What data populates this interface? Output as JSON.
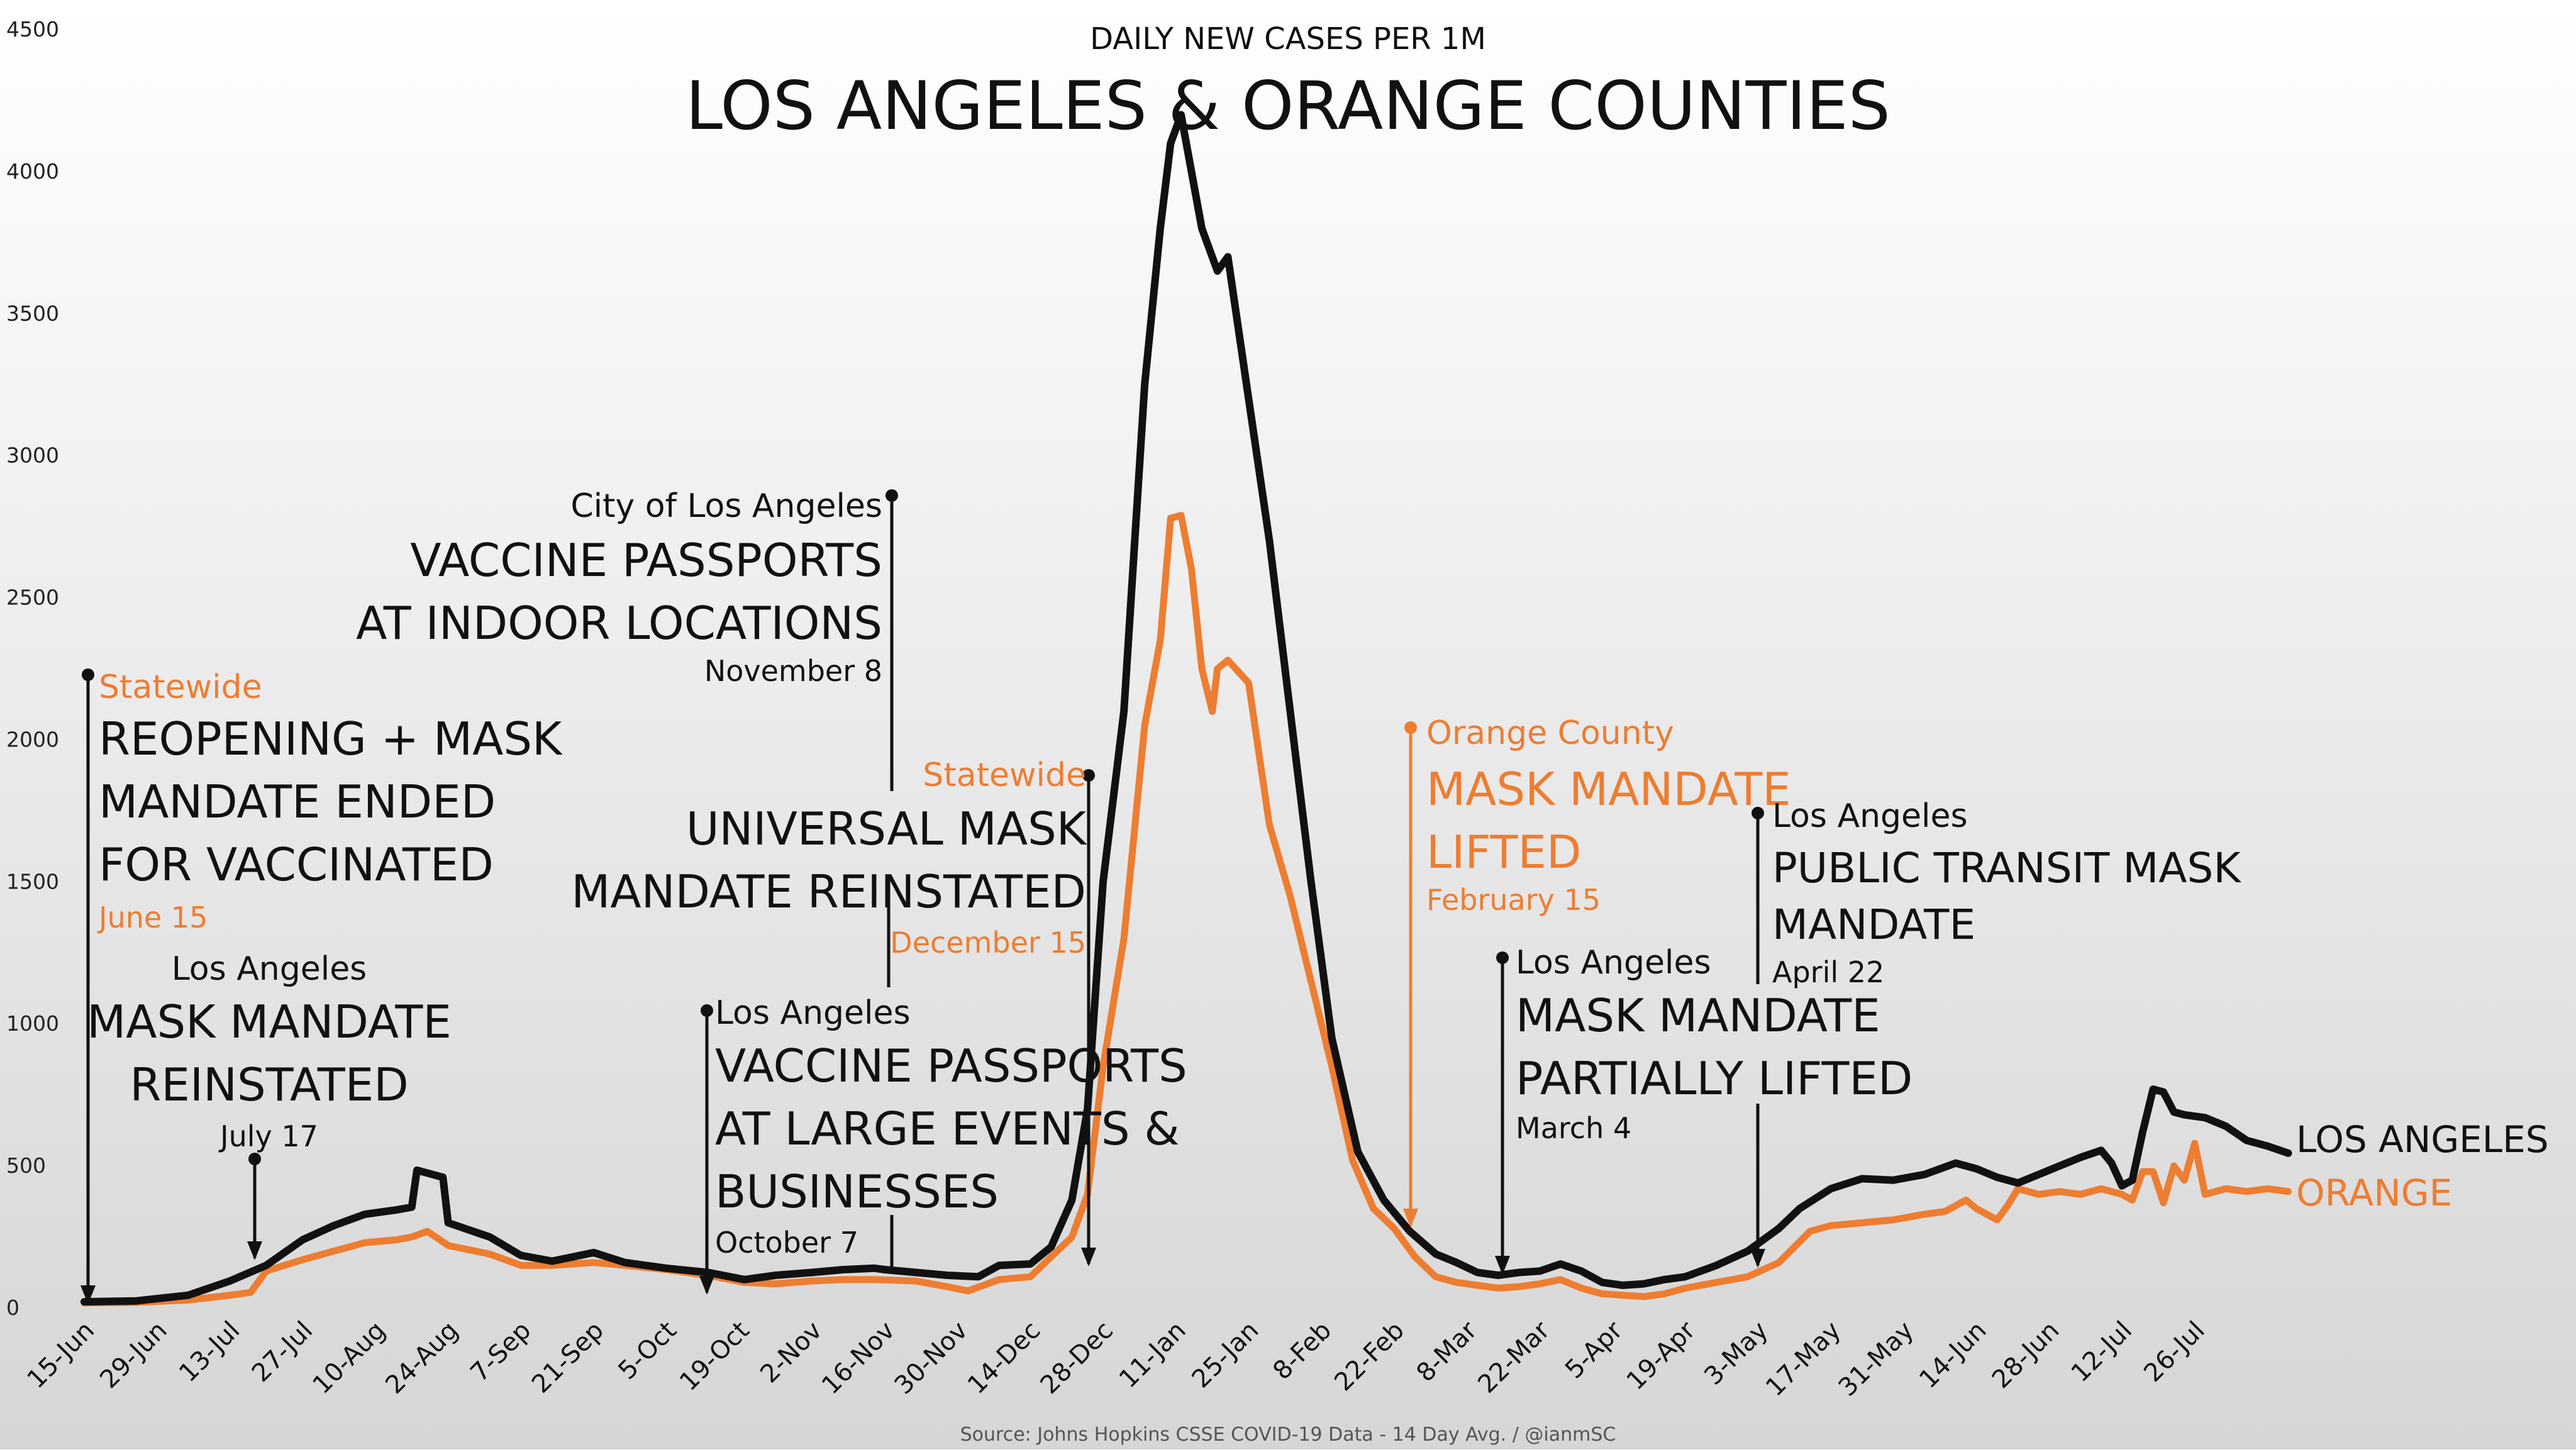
{
  "chart_data": {
    "type": "line",
    "title": "LOS ANGELES & ORANGE COUNTIES",
    "subtitle": "DAILY NEW CASES PER 1M",
    "source": "Source: Johns Hopkins CSSE COVID-19 Data - 14 Day Avg. / @ianmSC",
    "xlabel": "",
    "ylabel": "",
    "ylim": [
      0,
      4500
    ],
    "xlim": [
      0,
      426
    ],
    "grid": false,
    "background": "light-gray-gradient",
    "yticks": [
      "0",
      "500",
      "1000",
      "1500",
      "2000",
      "2500",
      "3000",
      "3500",
      "4000",
      "4500"
    ],
    "x_ticks": [
      {
        "label": "15-Jun",
        "day": 0
      },
      {
        "label": "29-Jun",
        "day": 14
      },
      {
        "label": "13-Jul",
        "day": 28
      },
      {
        "label": "27-Jul",
        "day": 42
      },
      {
        "label": "10-Aug",
        "day": 56
      },
      {
        "label": "24-Aug",
        "day": 70
      },
      {
        "label": "7-Sep",
        "day": 84
      },
      {
        "label": "21-Sep",
        "day": 98
      },
      {
        "label": "5-Oct",
        "day": 112
      },
      {
        "label": "19-Oct",
        "day": 126
      },
      {
        "label": "2-Nov",
        "day": 140
      },
      {
        "label": "16-Nov",
        "day": 154
      },
      {
        "label": "30-Nov",
        "day": 168
      },
      {
        "label": "14-Dec",
        "day": 182
      },
      {
        "label": "28-Dec",
        "day": 196
      },
      {
        "label": "11-Jan",
        "day": 210
      },
      {
        "label": "25-Jan",
        "day": 224
      },
      {
        "label": "8-Feb",
        "day": 238
      },
      {
        "label": "22-Feb",
        "day": 252
      },
      {
        "label": "8-Mar",
        "day": 266
      },
      {
        "label": "22-Mar",
        "day": 280
      },
      {
        "label": "5-Apr",
        "day": 294
      },
      {
        "label": "19-Apr",
        "day": 308
      },
      {
        "label": "3-May",
        "day": 322
      },
      {
        "label": "17-May",
        "day": 336
      },
      {
        "label": "31-May",
        "day": 350
      },
      {
        "label": "14-Jun",
        "day": 364
      },
      {
        "label": "28-Jun",
        "day": 378
      },
      {
        "label": "12-Jul",
        "day": 392
      },
      {
        "label": "26-Jul",
        "day": 406
      }
    ],
    "series": [
      {
        "name": "LOS ANGELES",
        "label": "LOS ANGELES",
        "color": "#111111",
        "points": [
          [
            0,
            22
          ],
          [
            10,
            25
          ],
          [
            20,
            45
          ],
          [
            28,
            95
          ],
          [
            35,
            150
          ],
          [
            42,
            240
          ],
          [
            48,
            290
          ],
          [
            54,
            330
          ],
          [
            60,
            345
          ],
          [
            63,
            355
          ],
          [
            64,
            485
          ],
          [
            69,
            460
          ],
          [
            70,
            300
          ],
          [
            78,
            250
          ],
          [
            84,
            185
          ],
          [
            90,
            165
          ],
          [
            98,
            195
          ],
          [
            104,
            160
          ],
          [
            112,
            140
          ],
          [
            120,
            125
          ],
          [
            127,
            100
          ],
          [
            133,
            115
          ],
          [
            140,
            125
          ],
          [
            146,
            135
          ],
          [
            152,
            140
          ],
          [
            154,
            135
          ],
          [
            160,
            125
          ],
          [
            166,
            115
          ],
          [
            172,
            110
          ],
          [
            176,
            150
          ],
          [
            182,
            155
          ],
          [
            186,
            215
          ],
          [
            190,
            380
          ],
          [
            193,
            700
          ],
          [
            196,
            1500
          ],
          [
            200,
            2100
          ],
          [
            204,
            3250
          ],
          [
            207,
            3800
          ],
          [
            209,
            4100
          ],
          [
            211,
            4200
          ],
          [
            213,
            4000
          ],
          [
            215,
            3800
          ],
          [
            218,
            3650
          ],
          [
            220,
            3700
          ],
          [
            224,
            3200
          ],
          [
            228,
            2700
          ],
          [
            232,
            2100
          ],
          [
            236,
            1500
          ],
          [
            240,
            950
          ],
          [
            245,
            550
          ],
          [
            250,
            380
          ],
          [
            255,
            270
          ],
          [
            260,
            190
          ],
          [
            264,
            160
          ],
          [
            268,
            125
          ],
          [
            272,
            115
          ],
          [
            276,
            125
          ],
          [
            280,
            130
          ],
          [
            284,
            155
          ],
          [
            288,
            130
          ],
          [
            292,
            90
          ],
          [
            296,
            80
          ],
          [
            300,
            85
          ],
          [
            304,
            100
          ],
          [
            308,
            110
          ],
          [
            314,
            150
          ],
          [
            320,
            200
          ],
          [
            326,
            280
          ],
          [
            330,
            350
          ],
          [
            336,
            420
          ],
          [
            342,
            455
          ],
          [
            348,
            450
          ],
          [
            354,
            470
          ],
          [
            360,
            510
          ],
          [
            364,
            490
          ],
          [
            368,
            460
          ],
          [
            372,
            440
          ],
          [
            376,
            470
          ],
          [
            380,
            500
          ],
          [
            384,
            530
          ],
          [
            388,
            555
          ],
          [
            390,
            510
          ],
          [
            392,
            430
          ],
          [
            394,
            450
          ],
          [
            396,
            620
          ],
          [
            398,
            770
          ],
          [
            400,
            760
          ],
          [
            402,
            690
          ],
          [
            404,
            680
          ],
          [
            408,
            670
          ],
          [
            412,
            640
          ],
          [
            416,
            590
          ],
          [
            420,
            570
          ],
          [
            424,
            545
          ]
        ]
      },
      {
        "name": "ORANGE",
        "label": "ORANGE",
        "color": "#ED7D31",
        "points": [
          [
            0,
            18
          ],
          [
            10,
            20
          ],
          [
            20,
            28
          ],
          [
            28,
            45
          ],
          [
            32,
            55
          ],
          [
            35,
            130
          ],
          [
            42,
            170
          ],
          [
            48,
            200
          ],
          [
            54,
            230
          ],
          [
            60,
            240
          ],
          [
            63,
            250
          ],
          [
            66,
            270
          ],
          [
            70,
            220
          ],
          [
            78,
            190
          ],
          [
            84,
            150
          ],
          [
            90,
            150
          ],
          [
            98,
            160
          ],
          [
            104,
            150
          ],
          [
            112,
            135
          ],
          [
            120,
            115
          ],
          [
            127,
            90
          ],
          [
            133,
            85
          ],
          [
            140,
            95
          ],
          [
            146,
            100
          ],
          [
            152,
            100
          ],
          [
            160,
            95
          ],
          [
            166,
            75
          ],
          [
            170,
            60
          ],
          [
            176,
            100
          ],
          [
            182,
            110
          ],
          [
            186,
            180
          ],
          [
            190,
            250
          ],
          [
            193,
            400
          ],
          [
            196,
            850
          ],
          [
            200,
            1300
          ],
          [
            204,
            2050
          ],
          [
            207,
            2350
          ],
          [
            209,
            2780
          ],
          [
            211,
            2790
          ],
          [
            213,
            2600
          ],
          [
            215,
            2250
          ],
          [
            217,
            2100
          ],
          [
            218,
            2250
          ],
          [
            220,
            2280
          ],
          [
            224,
            2200
          ],
          [
            228,
            1700
          ],
          [
            232,
            1450
          ],
          [
            236,
            1150
          ],
          [
            240,
            850
          ],
          [
            244,
            520
          ],
          [
            248,
            350
          ],
          [
            252,
            280
          ],
          [
            256,
            180
          ],
          [
            260,
            110
          ],
          [
            264,
            90
          ],
          [
            268,
            80
          ],
          [
            272,
            70
          ],
          [
            276,
            75
          ],
          [
            280,
            85
          ],
          [
            284,
            100
          ],
          [
            288,
            70
          ],
          [
            292,
            50
          ],
          [
            296,
            45
          ],
          [
            300,
            40
          ],
          [
            304,
            50
          ],
          [
            308,
            70
          ],
          [
            314,
            90
          ],
          [
            320,
            110
          ],
          [
            326,
            160
          ],
          [
            332,
            270
          ],
          [
            336,
            290
          ],
          [
            342,
            300
          ],
          [
            348,
            310
          ],
          [
            354,
            330
          ],
          [
            358,
            340
          ],
          [
            362,
            380
          ],
          [
            364,
            350
          ],
          [
            368,
            310
          ],
          [
            370,
            360
          ],
          [
            372,
            420
          ],
          [
            376,
            400
          ],
          [
            380,
            410
          ],
          [
            384,
            400
          ],
          [
            388,
            420
          ],
          [
            392,
            400
          ],
          [
            394,
            380
          ],
          [
            396,
            480
          ],
          [
            398,
            480
          ],
          [
            400,
            370
          ],
          [
            402,
            500
          ],
          [
            404,
            450
          ],
          [
            406,
            580
          ],
          [
            408,
            400
          ],
          [
            412,
            420
          ],
          [
            416,
            410
          ],
          [
            420,
            420
          ],
          [
            424,
            410
          ]
        ]
      }
    ],
    "annotations": [
      {
        "id": "reopening",
        "color": "#111111",
        "day": 1,
        "value": 2220,
        "header": "Statewide",
        "header_color": "#ED7D31",
        "lines": [
          "REOPENING + MASK",
          "MANDATE ENDED",
          "FOR VACCINATED"
        ],
        "date": "June 15",
        "date_color": "#ED7D31"
      },
      {
        "id": "la-mask-jul",
        "color": "#111111",
        "day": 32,
        "value": 530,
        "header": "Los Angeles",
        "lines": [
          "MASK MANDATE",
          "REINSTATED"
        ],
        "date": "July 17"
      },
      {
        "id": "la-passports-events",
        "color": "#111111",
        "day": 116,
        "value": 1050,
        "header": "Los Angeles",
        "lines": [
          "VACCINE PASSPORTS",
          "AT LARGE EVENTS &",
          "BUSINESSES"
        ],
        "date": "October 7"
      },
      {
        "id": "city-la-passports",
        "color": "#111111",
        "day": 148,
        "value": 2850,
        "header": "City of Los Angeles",
        "lines": [
          "VACCINE PASSPORTS",
          "AT INDOOR LOCATIONS"
        ],
        "date": "November 8"
      },
      {
        "id": "statewide-reinstated",
        "color": "#111111",
        "day": 181,
        "value": 1880,
        "header": "Statewide",
        "header_color": "#ED7D31",
        "lines": [
          "UNIVERSAL MASK",
          "MANDATE REINSTATED"
        ],
        "date": "December 15",
        "date_color": "#ED7D31"
      },
      {
        "id": "oc-lifted",
        "color": "#ED7D31",
        "day": 245,
        "value": 2040,
        "header": "Orange County",
        "header_color": "#ED7D31",
        "lines": [
          "MASK MANDATE",
          "LIFTED"
        ],
        "lines_color": "#ED7D31",
        "date": "February 15",
        "date_color": "#ED7D31"
      },
      {
        "id": "la-partially-lifted",
        "color": "#111111",
        "day": 262,
        "value": 1230,
        "header": "Los Angeles",
        "lines": [
          "MASK MANDATE",
          "PARTIALLY LIFTED"
        ],
        "date": "March 4"
      },
      {
        "id": "la-transit",
        "color": "#111111",
        "day": 311,
        "value": 1740,
        "header": "Los Angeles",
        "lines": [
          "PUBLIC TRANSIT MASK",
          "MANDATE"
        ],
        "date": "April 22"
      }
    ]
  }
}
